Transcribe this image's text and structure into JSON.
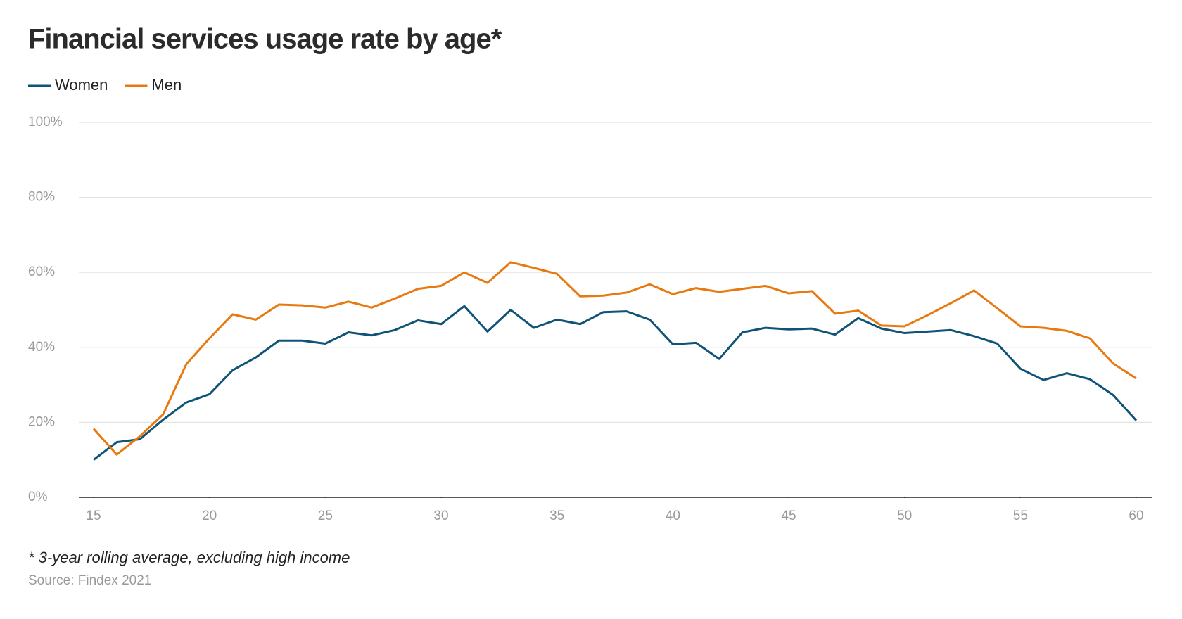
{
  "chart_data": {
    "type": "line",
    "title": "Financial services usage rate by age*",
    "note": "* 3-year rolling average, excluding high income",
    "source": "Source: Findex 2021",
    "x": [
      15,
      16,
      17,
      18,
      19,
      20,
      21,
      22,
      23,
      24,
      25,
      26,
      27,
      28,
      29,
      30,
      31,
      32,
      33,
      34,
      35,
      36,
      37,
      38,
      39,
      40,
      41,
      42,
      43,
      44,
      45,
      46,
      47,
      48,
      49,
      50,
      51,
      52,
      53,
      54,
      55,
      56,
      57,
      58,
      59,
      60
    ],
    "series": [
      {
        "name": "Women",
        "color": "#0f5478",
        "values": [
          10.0,
          14.7,
          15.5,
          20.7,
          25.3,
          27.5,
          33.9,
          37.3,
          41.8,
          41.8,
          41.0,
          44.0,
          43.2,
          44.6,
          47.2,
          46.2,
          51.0,
          44.2,
          50.0,
          45.2,
          47.4,
          46.2,
          49.4,
          49.6,
          47.4,
          40.8,
          41.2,
          36.9,
          44.0,
          45.2,
          44.8,
          45.0,
          43.4,
          47.8,
          45.0,
          43.8,
          44.2,
          44.6,
          43.0,
          41.0,
          34.3,
          31.3,
          33.1,
          31.5,
          27.3,
          20.5
        ]
      },
      {
        "name": "Men",
        "color": "#e8790f",
        "values": [
          18.3,
          11.4,
          16.3,
          22.1,
          35.5,
          42.4,
          48.8,
          47.4,
          51.4,
          51.2,
          50.6,
          52.2,
          50.6,
          53.0,
          55.6,
          56.4,
          60.0,
          57.2,
          62.7,
          61.2,
          59.6,
          53.6,
          53.8,
          54.6,
          56.8,
          54.2,
          55.8,
          54.8,
          55.6,
          56.4,
          54.4,
          55.0,
          49.0,
          49.8,
          45.8,
          45.6,
          48.6,
          51.8,
          55.2,
          50.4,
          45.6,
          45.2,
          44.4,
          42.4,
          35.7,
          31.7
        ]
      }
    ],
    "xlim": [
      15,
      60
    ],
    "xticks": [
      15,
      20,
      25,
      30,
      35,
      40,
      45,
      50,
      55,
      60
    ],
    "ylim": [
      0,
      100
    ],
    "yticks": [
      {
        "value": 0,
        "label": "0%"
      },
      {
        "value": 20,
        "label": "20%"
      },
      {
        "value": 40,
        "label": "40%"
      },
      {
        "value": 60,
        "label": "60%"
      },
      {
        "value": 80,
        "label": "80%"
      },
      {
        "value": 100,
        "label": "100%"
      }
    ],
    "grid": true
  }
}
